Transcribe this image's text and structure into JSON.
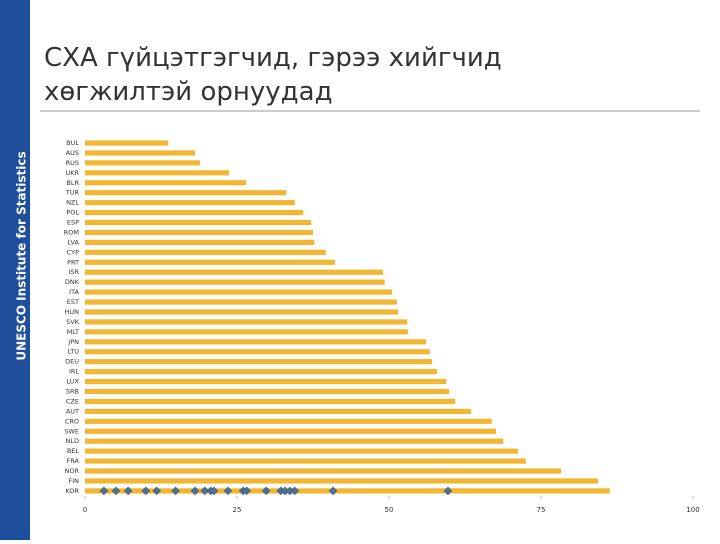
{
  "sidebar": "UNESCO Institute for Statistics",
  "chart_data": {
    "type": "bar",
    "orientation": "horizontal",
    "title": "СХА гүйцэтгэгчид, гэрээ хийгчид хөгжилтэй орнуудад",
    "categories": [
      "BUL",
      "AUS",
      "RUS",
      "UKR",
      "BLR",
      "TUR",
      "NZL",
      "POL",
      "ESP",
      "ROM",
      "LVA",
      "CYP",
      "PRT",
      "ISR",
      "DNK",
      "ITA",
      "EST",
      "HUN",
      "SVK",
      "MLT",
      "JPN",
      "LTU",
      "DEU",
      "IRL",
      "LUX",
      "SRB",
      "CZE",
      "AUT",
      "CRO",
      "SWE",
      "NLD",
      "BEL",
      "FRA",
      "NOR",
      "FIN",
      "KOR"
    ],
    "values": [
      13.7,
      18.1,
      18.9,
      23.7,
      26.5,
      33.1,
      34.5,
      35.9,
      37.2,
      37.5,
      37.7,
      39.6,
      41.1,
      49.0,
      49.3,
      50.5,
      51.3,
      51.5,
      53.0,
      53.1,
      56.1,
      56.7,
      57.1,
      57.9,
      59.4,
      59.9,
      60.9,
      63.5,
      66.9,
      67.6,
      68.8,
      71.2,
      72.5,
      78.3,
      84.4,
      86.3
    ],
    "color": "#f2b632",
    "markers": {
      "type": "scatter",
      "x": [
        3.1,
        5.1,
        7.1,
        10.0,
        11.8,
        14.9,
        18.1,
        19.7,
        20.7,
        21.2,
        23.5,
        26.0,
        26.6,
        29.8,
        32.2,
        32.9,
        33.7,
        34.5,
        40.8,
        59.7
      ],
      "color": "#4f6f96"
    },
    "xlim": [
      0,
      100
    ],
    "xticks": [
      0,
      25,
      50,
      75,
      100
    ],
    "grid": false
  }
}
